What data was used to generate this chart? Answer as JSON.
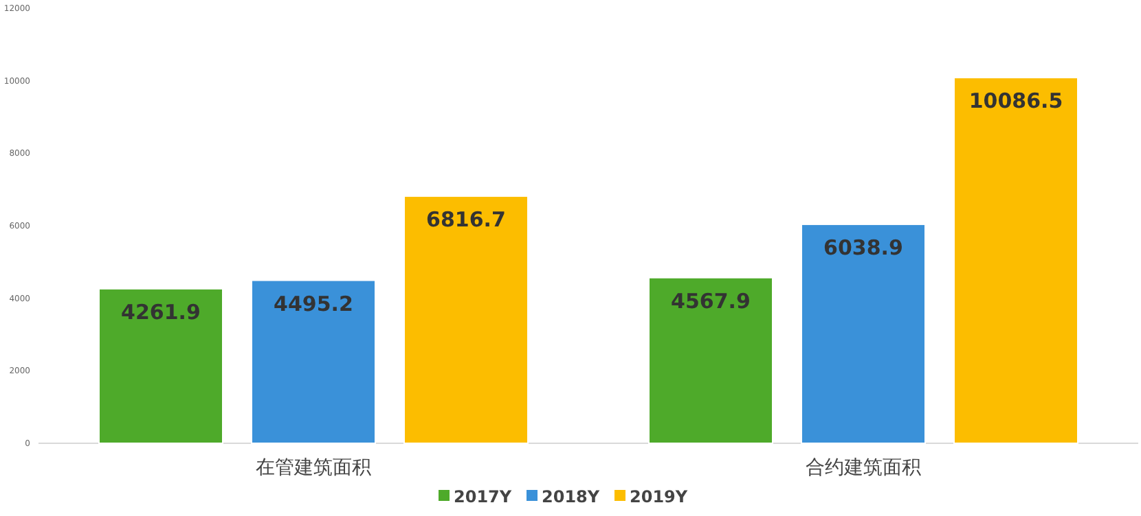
{
  "chart_data": {
    "type": "bar",
    "categories": [
      "在管建筑面积",
      "合约建筑面积"
    ],
    "series": [
      {
        "name": "2017Y",
        "color": "#4eaa2a",
        "values": [
          4261.9,
          4567.9
        ]
      },
      {
        "name": "2018Y",
        "color": "#3a91d9",
        "values": [
          4495.2,
          6038.9
        ]
      },
      {
        "name": "2019Y",
        "color": "#fcbd00",
        "values": [
          6816.7,
          10086.5
        ]
      }
    ],
    "ylim": [
      0,
      12000
    ],
    "yticks": [
      0,
      2000,
      4000,
      6000,
      8000,
      10000,
      12000
    ],
    "data_labels": true,
    "legend": "bottom"
  }
}
